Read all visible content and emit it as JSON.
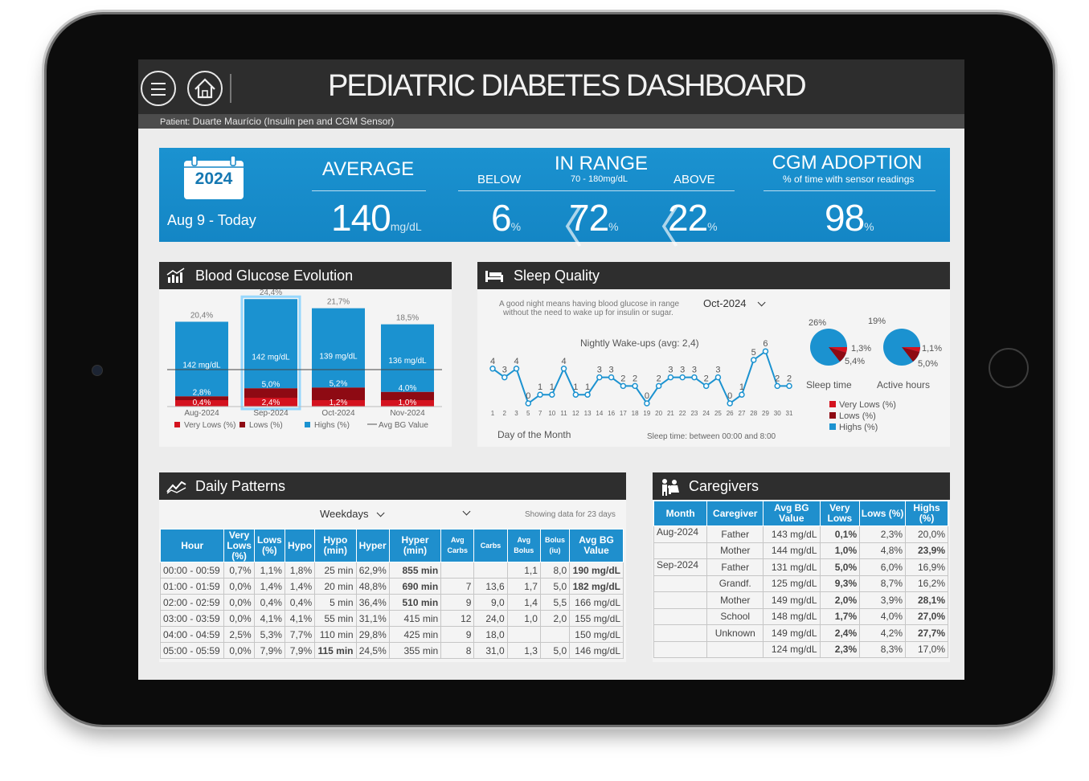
{
  "app": {
    "title": "PEDIATRIC DIABETES DASHBOARD",
    "patient_label": "Patient:",
    "patient_name": "Duarte Maurício (Insulin pen and CGM Sensor)"
  },
  "colors": {
    "accent": "#1b92d0",
    "header": "#2d2d2d",
    "very_lows": "#d4121e",
    "lows": "#8e0a13",
    "highs": "#1b92d0"
  },
  "kpi": {
    "year": "2024",
    "range": "Aug 9 - Today",
    "average": {
      "label": "AVERAGE",
      "value": "140",
      "unit": "mg/dL"
    },
    "in_range": {
      "label": "IN RANGE",
      "sub": "70 - 180mg/dL",
      "below_label": "BELOW",
      "below_value": "6",
      "value": "72",
      "above_label": "ABOVE",
      "above_value": "22",
      "unit": "%"
    },
    "cgm": {
      "label": "CGM ADOPTION",
      "sub": "% of time with sensor readings",
      "value": "98",
      "unit": "%"
    }
  },
  "blood_glucose": {
    "title": "Blood Glucose Evolution",
    "icon": "bar-chart-icon",
    "months": [
      "Aug-2024",
      "Sep-2024",
      "Oct-2024",
      "Nov-2024"
    ],
    "highs": [
      "20,4%",
      "24,4%",
      "21,7%",
      "18,5%"
    ],
    "avg": [
      "142 mg/dL",
      "142 mg/dL",
      "139 mg/dL",
      "136 mg/dL"
    ],
    "lows": [
      "2,8%",
      "5,0%",
      "5,2%",
      "4,0%"
    ],
    "very_lows": [
      "0,4%",
      "2,4%",
      "1,2%",
      "1,0%"
    ],
    "legend": {
      "very_lows": "Very Lows (%)",
      "lows": "Lows (%)",
      "highs": "Highs (%)",
      "avg": "Avg BG Value"
    }
  },
  "sleep": {
    "title": "Sleep Quality",
    "icon": "bed-icon",
    "note_line1": "A good night means having blood glucose in range",
    "note_line2": "without the need to wake up for insulin or sugar.",
    "month": "Oct-2024",
    "chart_title": "Nightly Wake-ups (avg: 2,4)",
    "x_label": "Day of the Month",
    "footer": "Sleep time: between 00:00 and 8:00",
    "pie1": {
      "label": "Sleep time",
      "highs": "26%",
      "very_lows": "1,3%",
      "lows": "5,4%"
    },
    "pie2": {
      "label": "Active hours",
      "highs": "19%",
      "very_lows": "1,1%",
      "lows": "5,0%"
    },
    "legend": {
      "very_lows": "Very Lows (%)",
      "lows": "Lows (%)",
      "highs": "Highs (%)"
    }
  },
  "chart_data": {
    "type": "line",
    "title": "Nightly Wake-ups (avg: 2,4)",
    "xlabel": "Day of the Month",
    "ylabel": "",
    "x": [
      "1",
      "2",
      "3",
      "5",
      "7",
      "10",
      "11",
      "12",
      "13",
      "14",
      "16",
      "17",
      "18",
      "19",
      "20",
      "21",
      "22",
      "23",
      "24",
      "25",
      "26",
      "27",
      "28",
      "29",
      "30",
      "31"
    ],
    "series": [
      {
        "values": [
          4,
          3,
          4,
          0,
          1,
          1,
          4,
          1,
          1,
          3,
          3,
          2,
          2,
          0,
          2,
          3,
          3,
          3,
          2,
          3,
          0,
          1,
          5,
          6,
          2,
          2
        ]
      }
    ],
    "grid": false
  },
  "daily": {
    "title": "Daily Patterns",
    "icon": "trend-line-icon",
    "filter": "Weekdays",
    "showing": "Showing data for 23 days",
    "headers": [
      "Hour",
      "Very Lows (%)",
      "Lows (%)",
      "Hypo",
      "Hypo (min)",
      "Hyper",
      "Hyper (min)",
      "Avg Carbs",
      "Carbs",
      "Avg Bolus",
      "Bolus (iu)",
      "Avg BG Value"
    ],
    "rows": [
      [
        "00:00 - 00:59",
        "0,7%",
        "1,1%",
        "1,8%",
        "25 min",
        "62,9%",
        "855 min",
        "",
        "",
        "1,1",
        "8,0",
        "190 mg/dL"
      ],
      [
        "01:00 - 01:59",
        "0,0%",
        "1,4%",
        "1,4%",
        "20 min",
        "48,8%",
        "690 min",
        "7",
        "13,6",
        "1,7",
        "5,0",
        "182 mg/dL"
      ],
      [
        "02:00 - 02:59",
        "0,0%",
        "0,4%",
        "0,4%",
        "5 min",
        "36,4%",
        "510 min",
        "9",
        "9,0",
        "1,4",
        "5,5",
        "166 mg/dL"
      ],
      [
        "03:00 - 03:59",
        "0,0%",
        "4,1%",
        "4,1%",
        "55 min",
        "31,1%",
        "415 min",
        "12",
        "24,0",
        "1,0",
        "2,0",
        "155 mg/dL"
      ],
      [
        "04:00 - 04:59",
        "2,5%",
        "5,3%",
        "7,7%",
        "110 min",
        "29,8%",
        "425 min",
        "9",
        "18,0",
        "",
        "",
        "150 mg/dL"
      ],
      [
        "05:00 - 05:59",
        "0,0%",
        "7,9%",
        "7,9%",
        "115 min",
        "24,5%",
        "355 min",
        "8",
        "31,0",
        "1,3",
        "5,0",
        "146 mg/dL"
      ]
    ]
  },
  "caregivers": {
    "title": "Caregivers",
    "icon": "family-icon",
    "headers": [
      "Month",
      "Caregiver",
      "Avg BG Value",
      "Very Lows",
      "Lows (%)",
      "Highs (%)"
    ],
    "rows": [
      [
        "Aug-2024",
        "Father",
        "143 mg/dL",
        "0,1%",
        "2,3%",
        "20,0%"
      ],
      [
        "",
        "Mother",
        "144 mg/dL",
        "1,0%",
        "4,8%",
        "23,9%"
      ],
      [
        "Sep-2024",
        "Father",
        "131 mg/dL",
        "5,0%",
        "6,0%",
        "16,9%"
      ],
      [
        "",
        "Grandf.",
        "125 mg/dL",
        "9,3%",
        "8,7%",
        "16,2%"
      ],
      [
        "",
        "Mother",
        "149 mg/dL",
        "2,0%",
        "3,9%",
        "28,1%"
      ],
      [
        "",
        "School",
        "148 mg/dL",
        "1,7%",
        "4,0%",
        "27,0%"
      ],
      [
        "",
        "Unknown",
        "149 mg/dL",
        "2,4%",
        "4,2%",
        "27,7%"
      ],
      [
        "",
        "",
        "124 mg/dL",
        "2,3%",
        "8,3%",
        "17,0%"
      ]
    ]
  }
}
